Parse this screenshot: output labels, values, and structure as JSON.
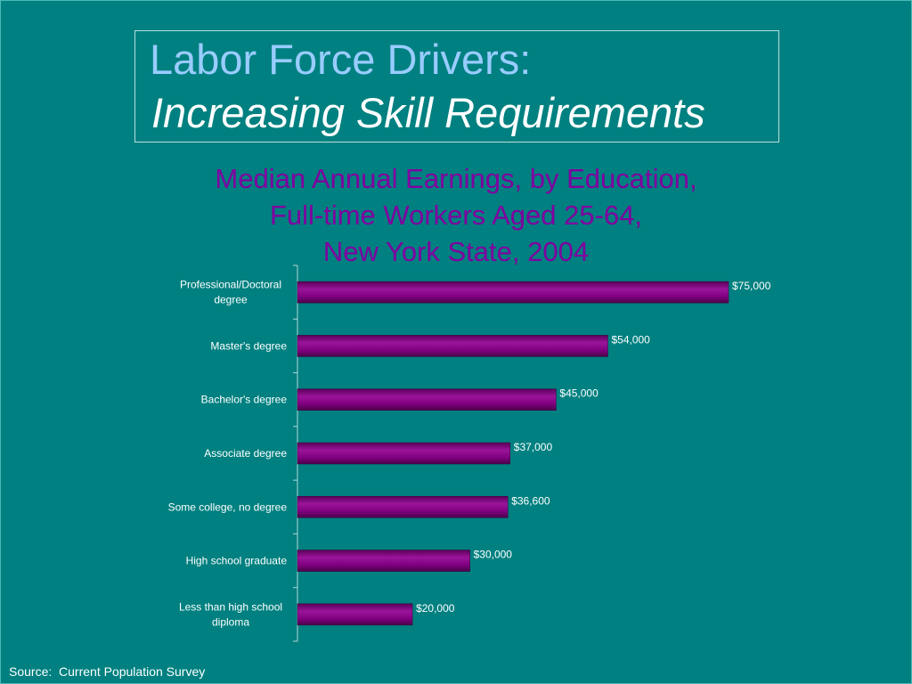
{
  "slide": {
    "title_line1": "Labor Force Drivers:",
    "title_line2": "Increasing Skill Requirements",
    "source": "Source:  Current Population Survey"
  },
  "colors": {
    "background": "#008080",
    "bar_fill": "#800080",
    "title_blue": "#99ccff",
    "chart_title": "#8000a0"
  },
  "chart_data": {
    "type": "bar",
    "orientation": "horizontal",
    "title_lines": [
      "Median Annual Earnings, by Education,",
      "Full-time Workers Aged 25-64,",
      "New York State, 2004"
    ],
    "categories": [
      [
        "Professional/Doctoral",
        "degree"
      ],
      [
        "Master's degree"
      ],
      [
        "Bachelor's degree"
      ],
      [
        "Associate degree"
      ],
      [
        "Some college, no degree"
      ],
      [
        "High school graduate"
      ],
      [
        "Less than high school",
        "diploma"
      ]
    ],
    "values": [
      75000,
      54000,
      45000,
      37000,
      36600,
      30000,
      20000
    ],
    "data_labels": [
      "$75,000",
      "$54,000",
      "$45,000",
      "$37,000",
      "$36,600",
      "$30,000",
      "$20,000"
    ],
    "xlim": [
      0,
      80000
    ],
    "grid": false,
    "legend": "none"
  }
}
